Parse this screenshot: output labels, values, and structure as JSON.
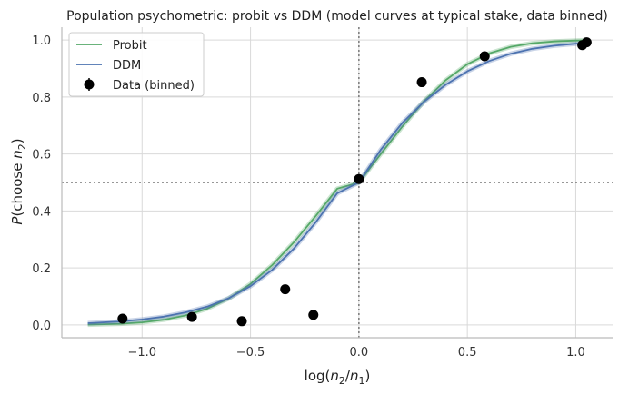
{
  "chart_data": {
    "type": "line",
    "title": "Population psychometric: probit vs DDM (model curves at typical stake, data binned)",
    "xlabel_parts": {
      "pre": "log(",
      "n2": "n",
      "n2_sub": "2",
      "slash": "/",
      "n1": "n",
      "n1_sub": "1",
      "post": ")"
    },
    "ylabel_parts": {
      "p": "P",
      "open": "(choose ",
      "n": "n",
      "n_sub": "2",
      "close": ")"
    },
    "xlim": [
      -1.37,
      1.17
    ],
    "ylim": [
      -0.045,
      1.045
    ],
    "x_ticks": [
      -1.0,
      -0.5,
      0.0,
      0.5,
      1.0
    ],
    "x_tick_labels": [
      "−1.0",
      "−0.5",
      "0.0",
      "0.5",
      "1.0"
    ],
    "y_ticks": [
      0.0,
      0.2,
      0.4,
      0.6,
      0.8,
      1.0
    ],
    "y_tick_labels": [
      "0.0",
      "0.2",
      "0.4",
      "0.6",
      "0.8",
      "1.0"
    ],
    "grid": true,
    "legend_position": "top-left",
    "reference_lines": {
      "vertical_x": 0.0,
      "horizontal_y": 0.5
    },
    "series": [
      {
        "name": "Probit",
        "kind": "line",
        "color": "#55a868",
        "x": [
          -1.25,
          -1.1,
          -1.0,
          -0.9,
          -0.8,
          -0.7,
          -0.6,
          -0.5,
          -0.4,
          -0.3,
          -0.2,
          -0.1,
          0.0,
          0.1,
          0.2,
          0.3,
          0.4,
          0.5,
          0.6,
          0.7,
          0.8,
          0.9,
          1.0,
          1.05
        ],
        "y": [
          0.001,
          0.004,
          0.009,
          0.018,
          0.033,
          0.057,
          0.093,
          0.144,
          0.21,
          0.29,
          0.381,
          0.478,
          0.5,
          0.599,
          0.696,
          0.785,
          0.859,
          0.915,
          0.953,
          0.976,
          0.989,
          0.995,
          0.998,
          0.999
        ]
      },
      {
        "name": "DDM",
        "kind": "line",
        "color": "#4c72b0",
        "x": [
          -1.25,
          -1.1,
          -1.0,
          -0.9,
          -0.8,
          -0.7,
          -0.6,
          -0.5,
          -0.4,
          -0.3,
          -0.2,
          -0.1,
          0.0,
          0.1,
          0.2,
          0.3,
          0.4,
          0.5,
          0.6,
          0.7,
          0.8,
          0.9,
          1.0,
          1.05
        ],
        "y": [
          0.006,
          0.012,
          0.019,
          0.029,
          0.044,
          0.064,
          0.094,
          0.136,
          0.193,
          0.268,
          0.359,
          0.462,
          0.5,
          0.614,
          0.709,
          0.783,
          0.843,
          0.89,
          0.926,
          0.952,
          0.969,
          0.98,
          0.987,
          0.99
        ]
      },
      {
        "name": "Data (binned)",
        "kind": "scatter",
        "color": "#000000",
        "x": [
          -1.09,
          -0.77,
          -0.54,
          -0.34,
          -0.21,
          0.0,
          0.29,
          0.58,
          1.03,
          1.05
        ],
        "y": [
          0.022,
          0.028,
          0.013,
          0.125,
          0.035,
          0.512,
          0.852,
          0.943,
          0.982,
          0.992
        ]
      }
    ]
  }
}
